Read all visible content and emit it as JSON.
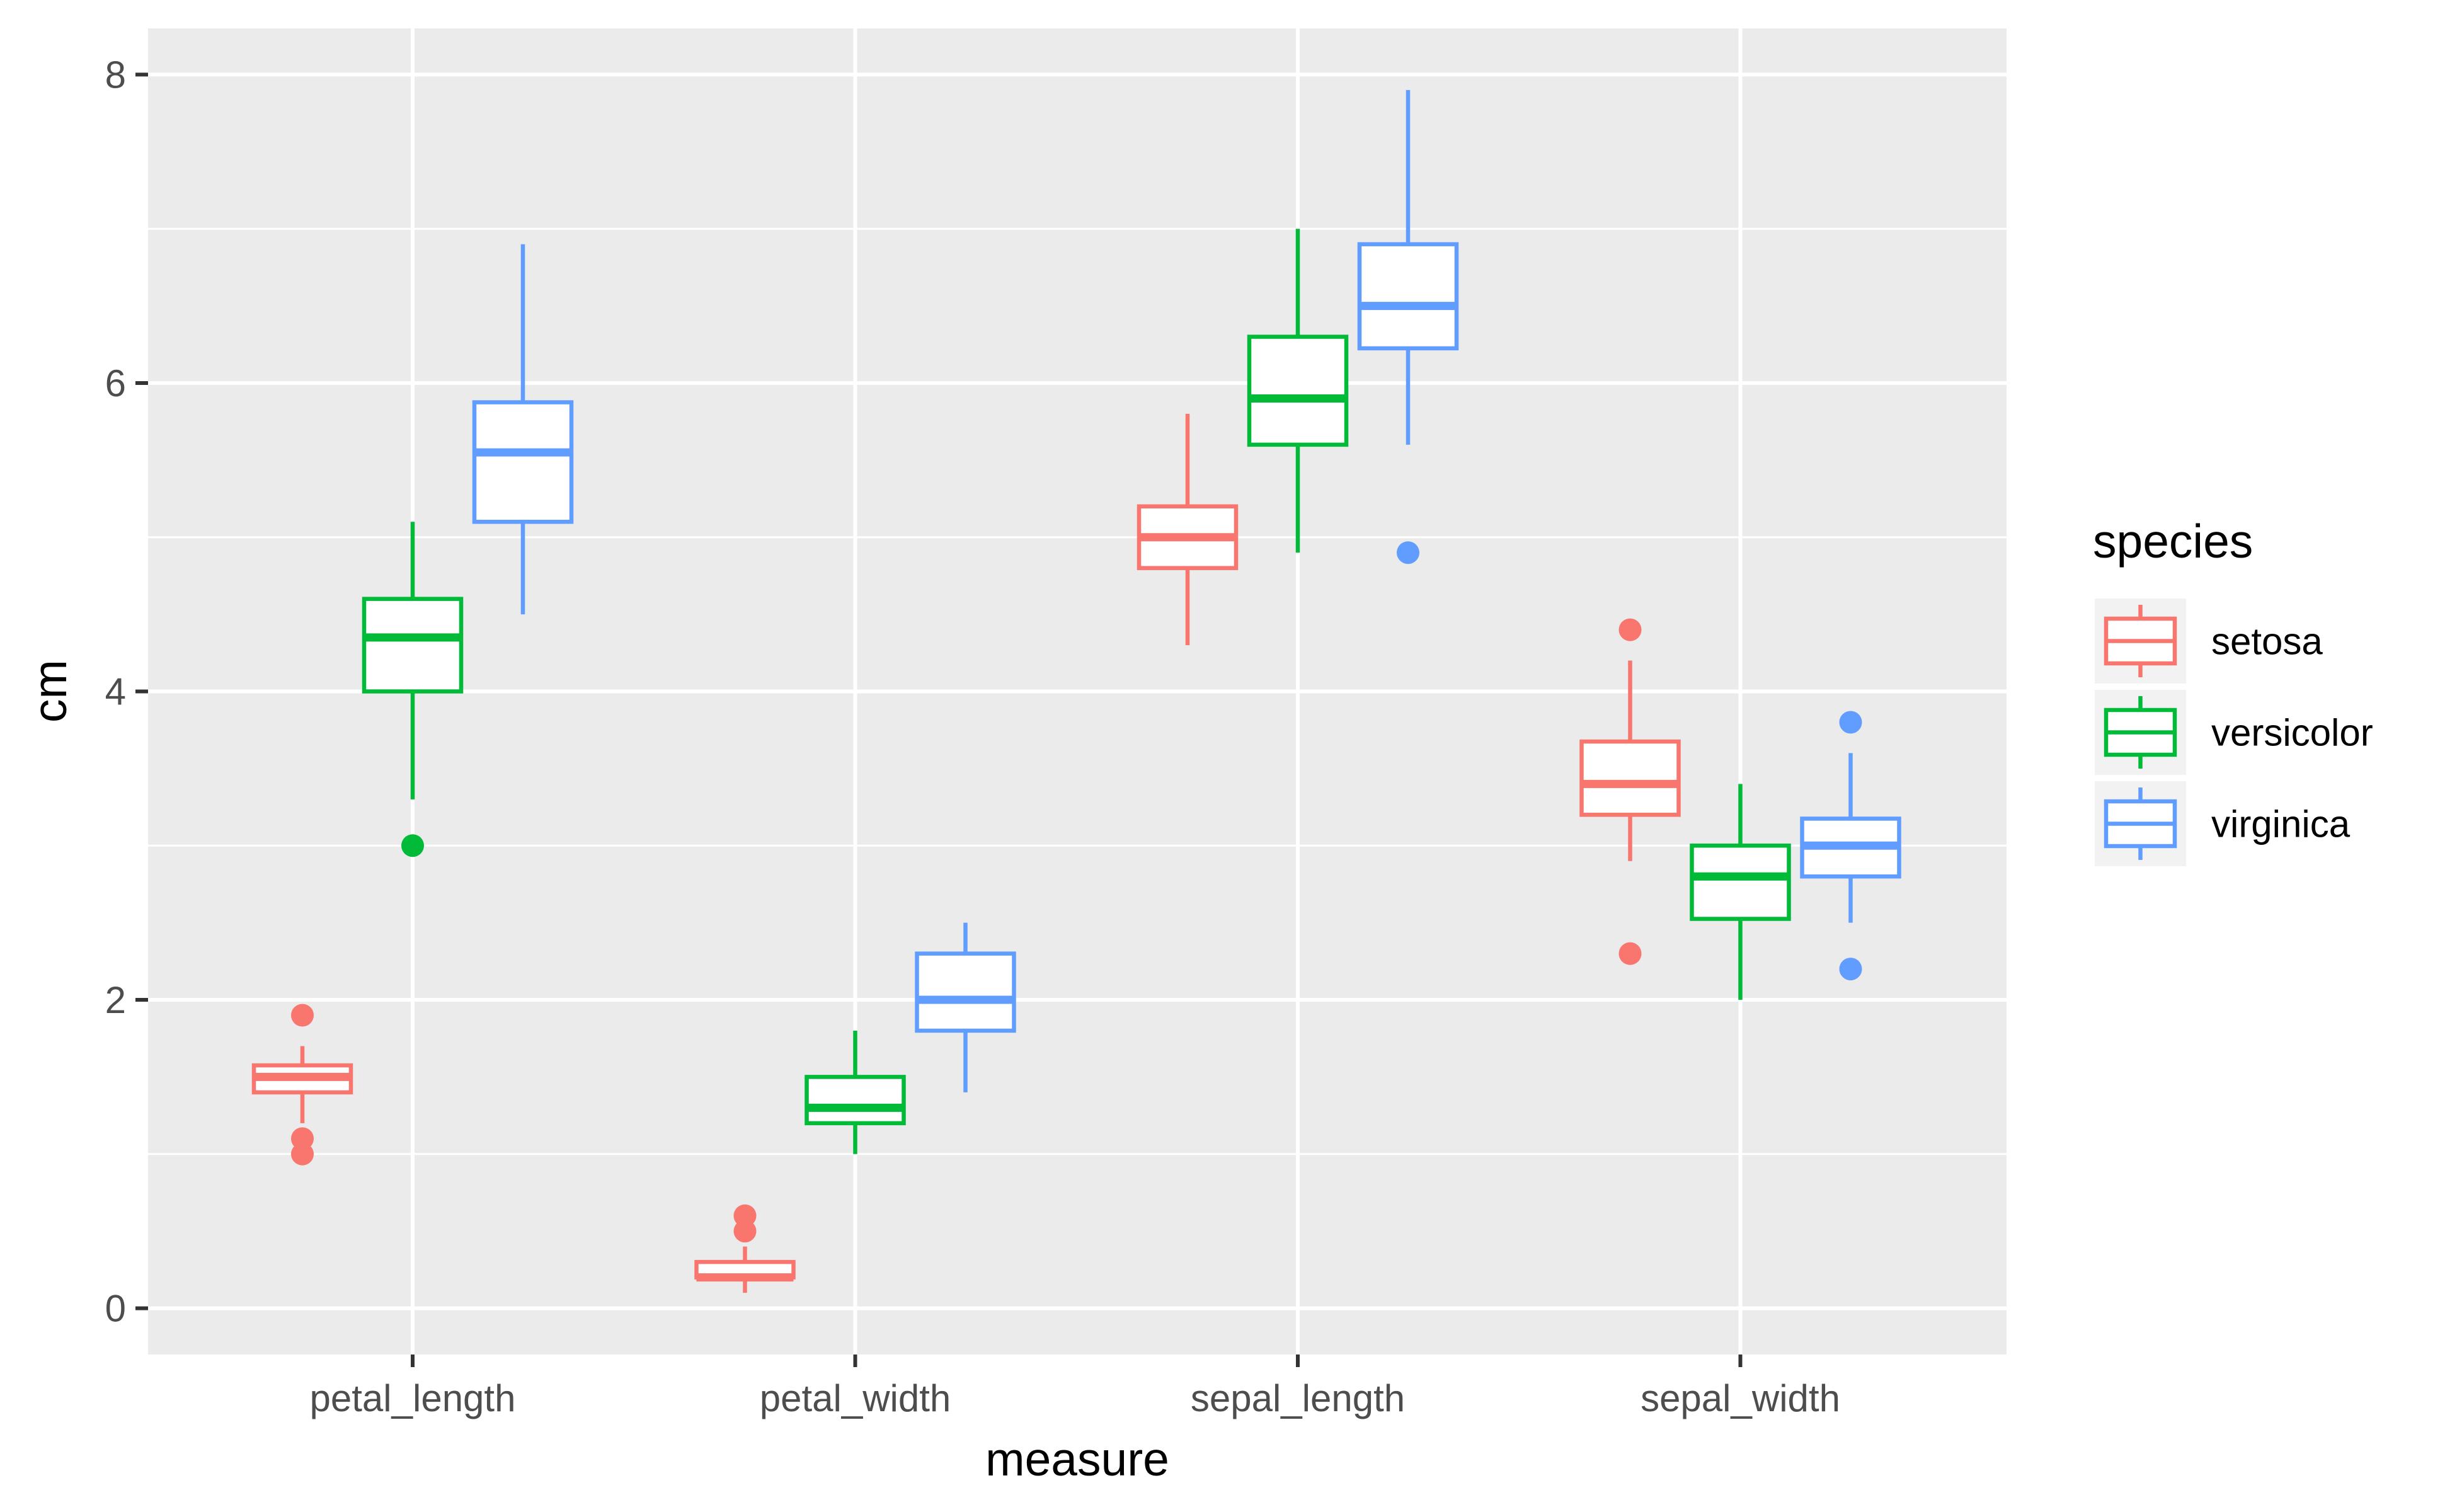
{
  "chart_data": {
    "type": "boxplot",
    "xlabel": "measure",
    "ylabel": "cm",
    "ylim": [
      -0.3,
      8.3
    ],
    "y_ticks": [
      0,
      2,
      4,
      6,
      8
    ],
    "y_tick_labels": [
      "0",
      "2",
      "4",
      "6",
      "8"
    ],
    "grid": true,
    "legend_position": "right",
    "legend_title": "species",
    "categories": [
      "petal_length",
      "petal_width",
      "sepal_length",
      "sepal_width"
    ],
    "series": [
      {
        "name": "setosa",
        "color": "#F8766D",
        "boxes": [
          {
            "lower_whisker": 1.2,
            "q1": 1.4,
            "median": 1.5,
            "q3": 1.575,
            "upper_whisker": 1.7,
            "outliers": [
              1.0,
              1.1,
              1.9
            ]
          },
          {
            "lower_whisker": 0.1,
            "q1": 0.2,
            "median": 0.2,
            "q3": 0.3,
            "upper_whisker": 0.4,
            "outliers": [
              0.5,
              0.6
            ]
          },
          {
            "lower_whisker": 4.3,
            "q1": 4.8,
            "median": 5.0,
            "q3": 5.2,
            "upper_whisker": 5.8,
            "outliers": []
          },
          {
            "lower_whisker": 2.9,
            "q1": 3.2,
            "median": 3.4,
            "q3": 3.675,
            "upper_whisker": 4.2,
            "outliers": [
              2.3,
              4.4
            ]
          }
        ]
      },
      {
        "name": "versicolor",
        "color": "#00BA38",
        "boxes": [
          {
            "lower_whisker": 3.3,
            "q1": 4.0,
            "median": 4.35,
            "q3": 4.6,
            "upper_whisker": 5.1,
            "outliers": [
              3.0
            ]
          },
          {
            "lower_whisker": 1.0,
            "q1": 1.2,
            "median": 1.3,
            "q3": 1.5,
            "upper_whisker": 1.8,
            "outliers": []
          },
          {
            "lower_whisker": 4.9,
            "q1": 5.6,
            "median": 5.9,
            "q3": 6.3,
            "upper_whisker": 7.0,
            "outliers": []
          },
          {
            "lower_whisker": 2.0,
            "q1": 2.525,
            "median": 2.8,
            "q3": 3.0,
            "upper_whisker": 3.4,
            "outliers": []
          }
        ]
      },
      {
        "name": "virginica",
        "color": "#619CFF",
        "boxes": [
          {
            "lower_whisker": 4.5,
            "q1": 5.1,
            "median": 5.55,
            "q3": 5.875,
            "upper_whisker": 6.9,
            "outliers": []
          },
          {
            "lower_whisker": 1.4,
            "q1": 1.8,
            "median": 2.0,
            "q3": 2.3,
            "upper_whisker": 2.5,
            "outliers": []
          },
          {
            "lower_whisker": 5.6,
            "q1": 6.225,
            "median": 6.5,
            "q3": 6.9,
            "upper_whisker": 7.9,
            "outliers": [
              4.9
            ]
          },
          {
            "lower_whisker": 2.5,
            "q1": 2.8,
            "median": 3.0,
            "q3": 3.175,
            "upper_whisker": 3.6,
            "outliers": [
              2.2,
              3.8
            ]
          }
        ]
      }
    ],
    "panel_background": "#EBEBEB",
    "grid_color": "#FFFFFF"
  }
}
